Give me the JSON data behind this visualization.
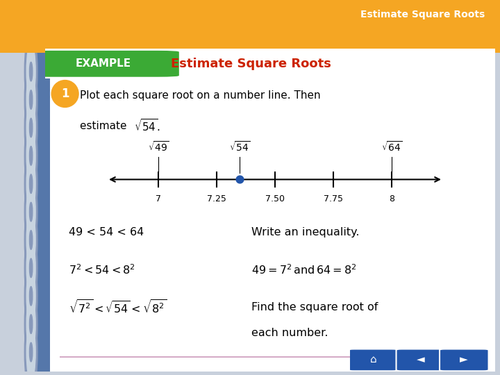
{
  "title": "Estimate Square Roots",
  "header_bg": "#F5A623",
  "example_label": "EXAMPLE",
  "example_bg": "#3BAA35",
  "slide_title": "Estimate Square Roots",
  "slide_title_color": "#CC2200",
  "body_bg": "#C8D0DC",
  "paper_bg": "#FFFFFF",
  "problem_text_line1": "Plot each square root on a number line. Then",
  "problem_text_line2": "estimate ",
  "number_line_ticks": [
    7.0,
    7.25,
    7.5,
    7.75,
    8.0
  ],
  "tick_labels": [
    "7",
    "7.25",
    "7.50",
    "7.75",
    "8"
  ],
  "sqrt49": 7.0,
  "sqrt54": 7.3484692,
  "sqrt64": 8.0,
  "dot_color": "#2255AA",
  "dot_size": 60,
  "step1_left": "49 < 54 < 64",
  "step1_right": "Write an inequality.",
  "step3_right_line1": "Find the square root of",
  "step3_right_line2": "each number.",
  "text_color": "#000000",
  "top_banner_text": "Estimate Square Roots",
  "number_circle_color": "#F5A623",
  "number_circle_text": "1",
  "nav_btn_color": "#2255AA",
  "separator_color": "#CC99BB"
}
